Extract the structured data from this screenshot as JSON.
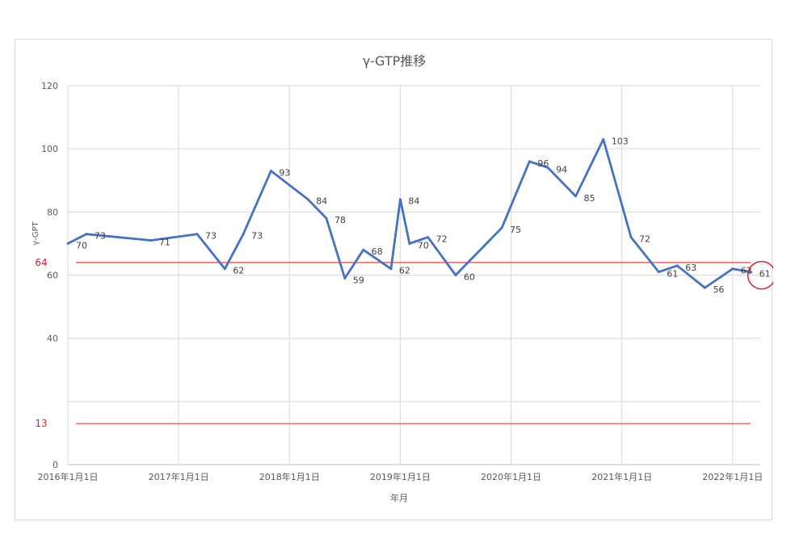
{
  "chart_data": {
    "type": "line",
    "title": "γ-GTP推移",
    "xlabel": "年月",
    "ylabel": "γ-GPT",
    "ylim": [
      0,
      120
    ],
    "yticks": [
      0,
      40,
      60,
      80,
      100,
      120
    ],
    "xticks": [
      "2016年1月1日",
      "2017年1月1日",
      "2018年1月1日",
      "2019年1月1日",
      "2020年1月1日",
      "2021年1月1日",
      "2022年1月1日"
    ],
    "grid": true,
    "legend": "none",
    "series": [
      {
        "color": "#4472c4",
        "points": [
          {
            "x": "2016-01",
            "y": 70
          },
          {
            "x": "2016-03",
            "y": 73
          },
          {
            "x": "2016-10",
            "y": 71
          },
          {
            "x": "2017-03",
            "y": 73
          },
          {
            "x": "2017-06",
            "y": 62
          },
          {
            "x": "2017-08",
            "y": 73
          },
          {
            "x": "2017-11",
            "y": 93
          },
          {
            "x": "2018-03",
            "y": 84
          },
          {
            "x": "2018-05",
            "y": 78
          },
          {
            "x": "2018-07",
            "y": 59
          },
          {
            "x": "2018-09",
            "y": 68
          },
          {
            "x": "2018-12",
            "y": 62
          },
          {
            "x": "2019-01",
            "y": 84
          },
          {
            "x": "2019-02",
            "y": 70
          },
          {
            "x": "2019-04",
            "y": 72
          },
          {
            "x": "2019-07",
            "y": 60
          },
          {
            "x": "2019-12",
            "y": 75
          },
          {
            "x": "2020-03",
            "y": 96
          },
          {
            "x": "2020-05",
            "y": 94
          },
          {
            "x": "2020-08",
            "y": 85
          },
          {
            "x": "2020-11",
            "y": 103
          },
          {
            "x": "2021-02",
            "y": 72
          },
          {
            "x": "2021-05",
            "y": 61
          },
          {
            "x": "2021-07",
            "y": 63
          },
          {
            "x": "2021-10",
            "y": 56
          },
          {
            "x": "2022-01",
            "y": 62
          },
          {
            "x": "2022-03",
            "y": 61
          }
        ]
      }
    ],
    "reference_lines": [
      {
        "label": "64",
        "y": 64,
        "color": "#e8453c"
      },
      {
        "label": "13",
        "y": 13,
        "color": "#e8453c"
      }
    ],
    "highlight": {
      "x": "2022-03",
      "y": 61,
      "color": "#e0202a"
    }
  }
}
